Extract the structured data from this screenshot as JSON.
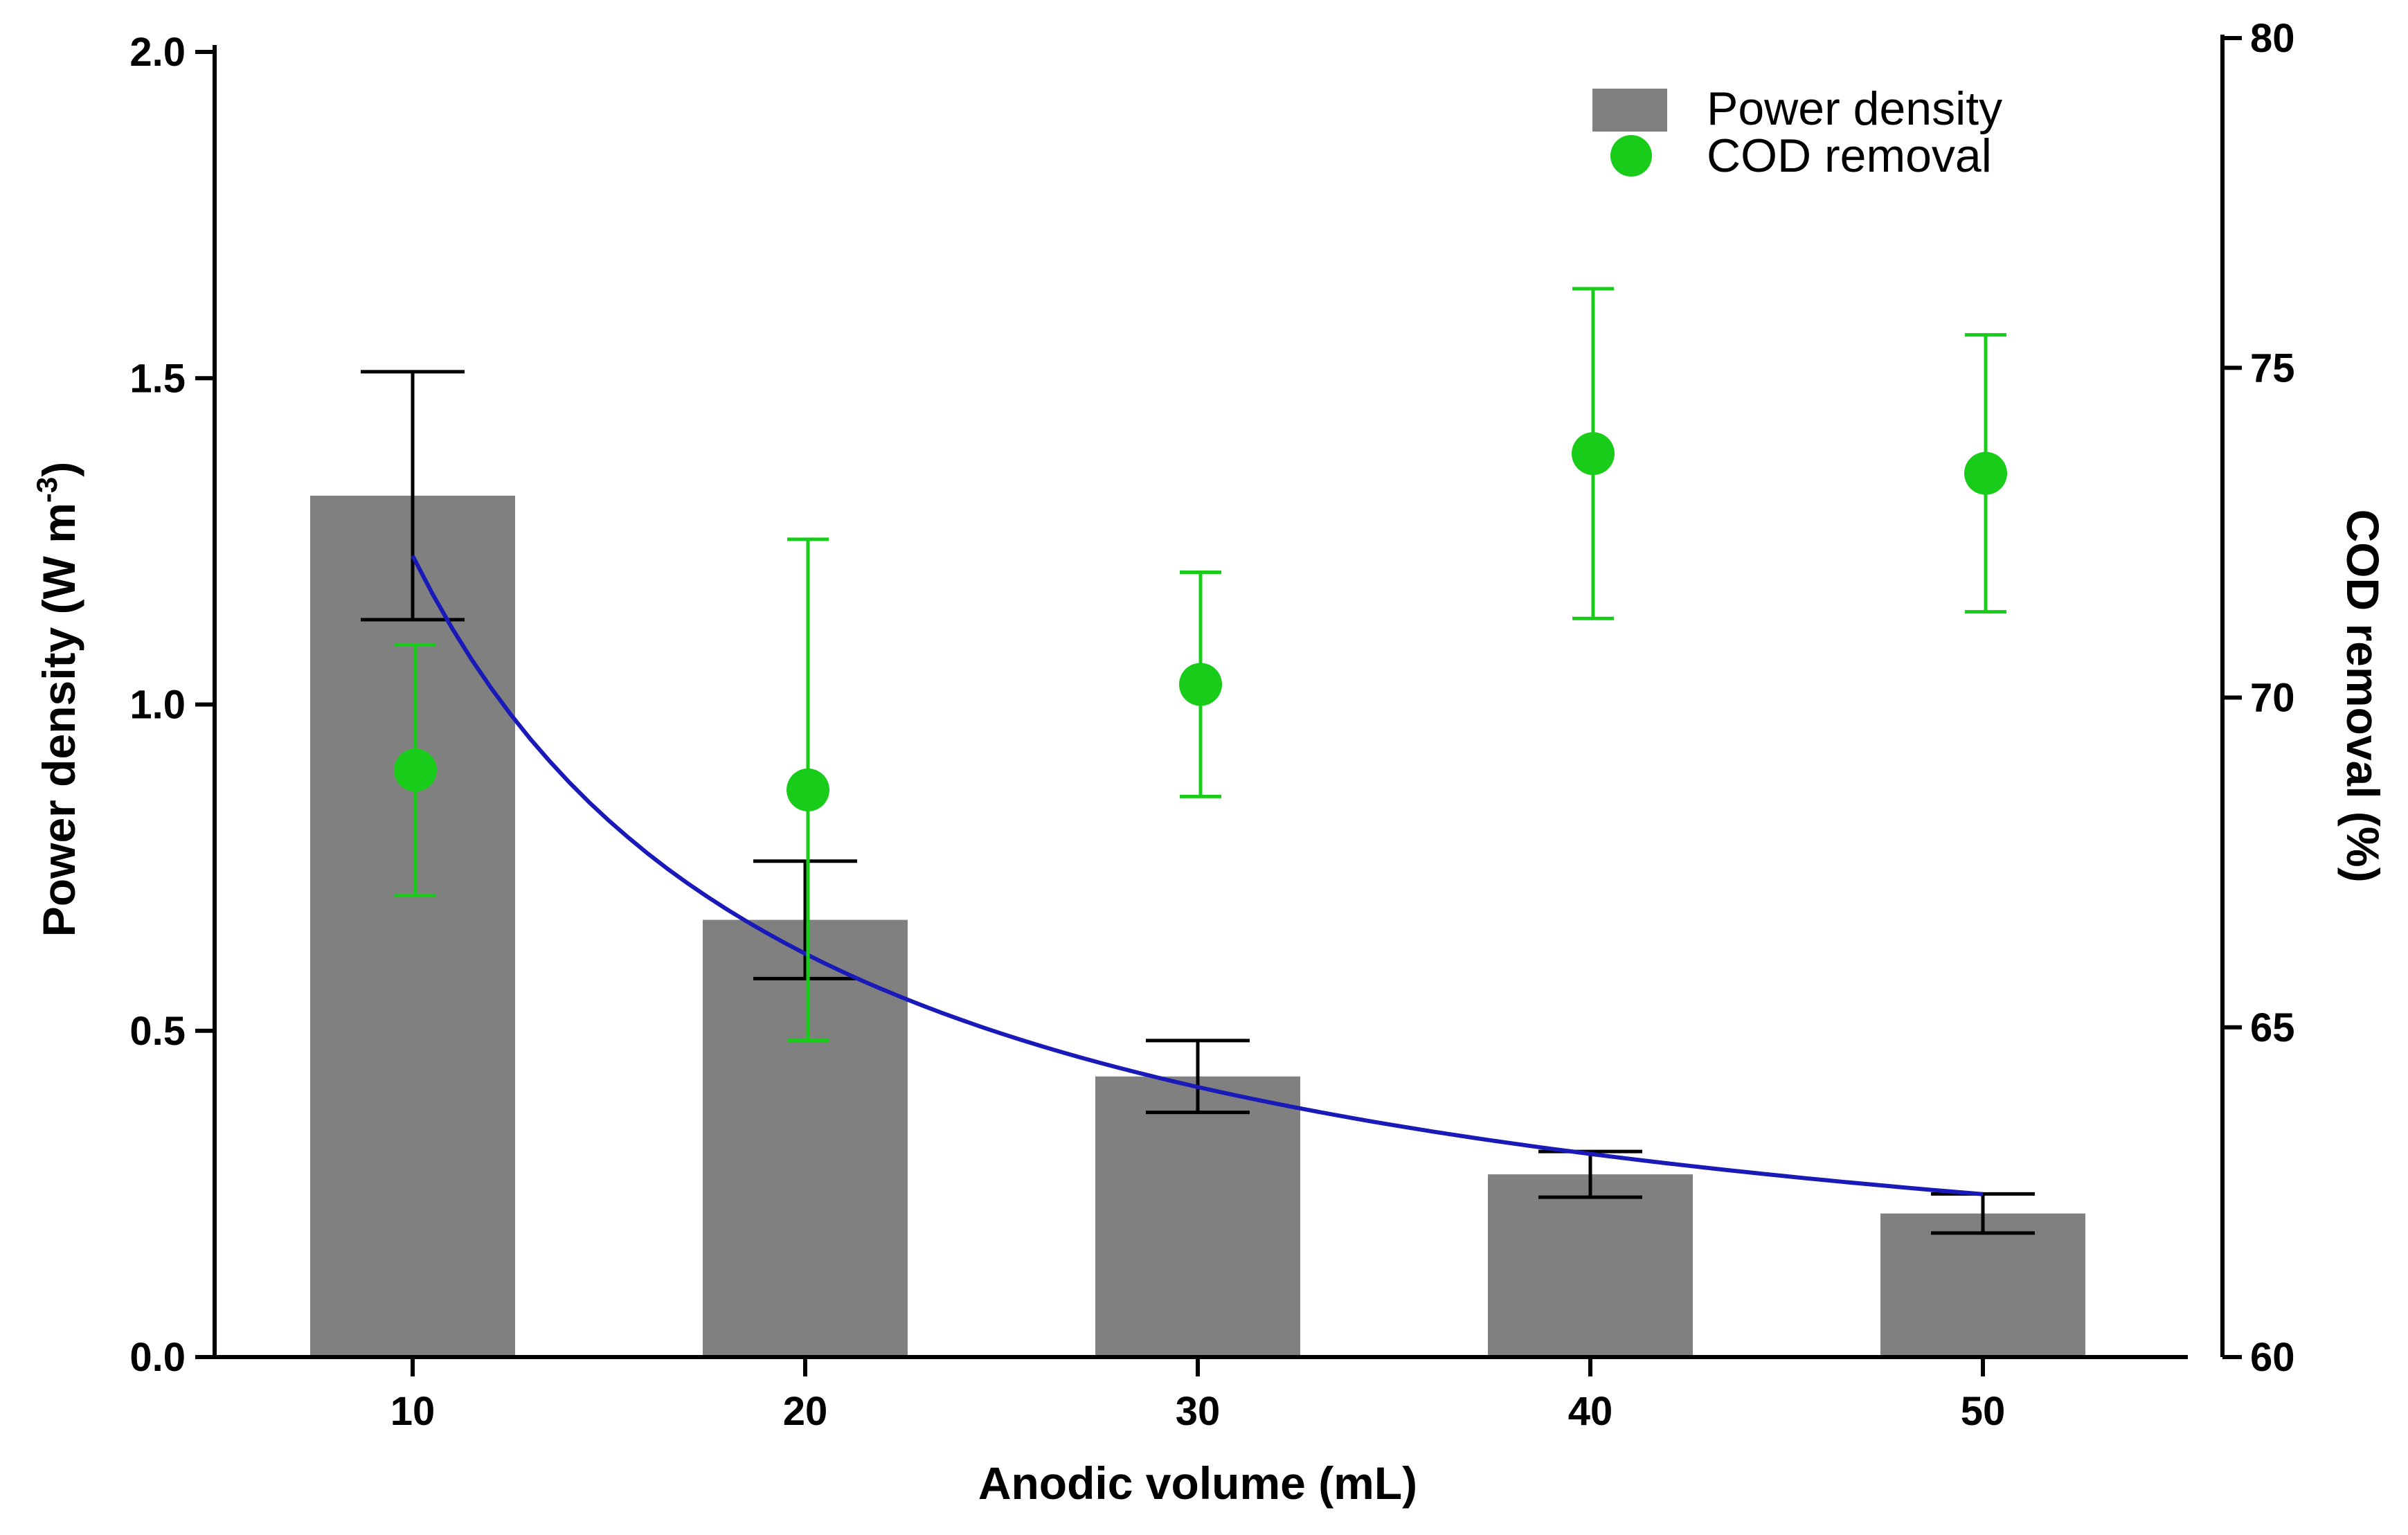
{
  "chart_data": {
    "type": "bar",
    "title": "",
    "xlabel": "Anodic volume (mL)",
    "ylabel_left": {
      "main": "Power density (W m",
      "sup": "-3",
      "end": ")"
    },
    "ylabel_right": "COD removal (%)",
    "categories": [
      "10",
      "20",
      "30",
      "40",
      "50"
    ],
    "ylim_left": [
      0,
      2.0
    ],
    "yticks_left": [
      "0.0",
      "0.5",
      "1.0",
      "1.5",
      "2.0"
    ],
    "ylim_right": [
      60,
      80
    ],
    "yticks_right": [
      "60",
      "65",
      "70",
      "75",
      "80"
    ],
    "series": [
      {
        "name": "Power density",
        "kind": "bar",
        "axis": "left",
        "color": "#808080",
        "values": [
          1.32,
          0.67,
          0.43,
          0.28,
          0.22
        ],
        "error": [
          0.19,
          0.09,
          0.055,
          0.035,
          0.03
        ]
      },
      {
        "name": "COD removal",
        "kind": "scatter",
        "axis": "right",
        "color": "#19cc19",
        "values": [
          68.9,
          68.6,
          70.2,
          73.7,
          73.4
        ],
        "error": [
          1.9,
          3.8,
          1.7,
          2.5,
          2.1
        ]
      },
      {
        "name": "fit",
        "kind": "line",
        "axis": "left",
        "color": "#1a1ab8",
        "x": [
          10,
          50
        ],
        "a": 12.0,
        "b": -0.99
      }
    ],
    "legend": {
      "position": "top-right",
      "items": [
        "Power density",
        "COD removal"
      ]
    }
  }
}
